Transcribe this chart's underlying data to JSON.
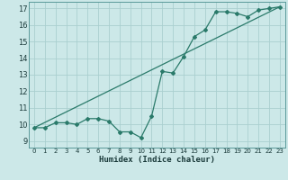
{
  "xlabel": "Humidex (Indice chaleur)",
  "bg_color": "#cce8e8",
  "grid_color": "#aacfcf",
  "line_color": "#2a7a6a",
  "xlim": [
    -0.5,
    23.5
  ],
  "ylim": [
    8.6,
    17.4
  ],
  "yticks": [
    9,
    10,
    11,
    12,
    13,
    14,
    15,
    16,
    17
  ],
  "xticks": [
    0,
    1,
    2,
    3,
    4,
    5,
    6,
    7,
    8,
    9,
    10,
    11,
    12,
    13,
    14,
    15,
    16,
    17,
    18,
    19,
    20,
    21,
    22,
    23
  ],
  "series1_x": [
    0,
    1,
    2,
    3,
    4,
    5,
    6,
    7,
    8,
    9,
    10,
    11,
    12,
    13,
    14,
    15,
    16,
    17,
    18,
    19,
    20,
    21,
    22,
    23
  ],
  "series1_y": [
    9.8,
    9.8,
    10.1,
    10.1,
    10.0,
    10.35,
    10.35,
    10.2,
    9.55,
    9.55,
    9.2,
    10.5,
    13.2,
    13.1,
    14.1,
    15.3,
    15.7,
    16.8,
    16.8,
    16.7,
    16.5,
    16.9,
    17.0,
    17.1
  ],
  "series2_x": [
    0,
    23
  ],
  "series2_y": [
    9.8,
    17.1
  ]
}
